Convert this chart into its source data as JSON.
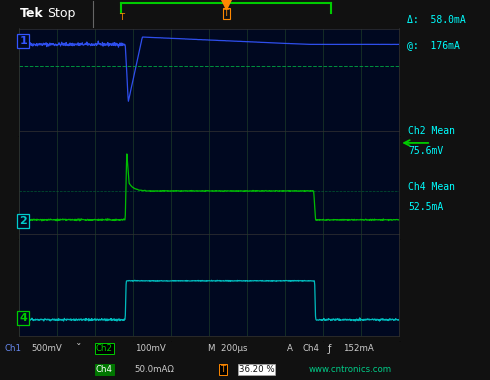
{
  "fig_w": 4.9,
  "fig_h": 3.8,
  "dpi": 100,
  "bg_color": "#111111",
  "screen_bg": "#000820",
  "grid_color": "#2d5a2d",
  "ch1_color": "#3355ff",
  "ch2_color": "#00cc00",
  "ch4_color": "#00cccc",
  "orange_color": "#ff8800",
  "cyan_color": "#00ffff",
  "green_text": "#00cc88",
  "dashed_color": "#00aa44",
  "num_points": 1000,
  "ps": 2.8,
  "pe": 7.8,
  "ch1_high": 0.75,
  "ch1_dip": -1.6,
  "ch2_spike": 3.2,
  "ch2_pulse": 1.4,
  "ch2_low": 0.05,
  "ch4_pulse": 1.5,
  "ch4_low": 0.1,
  "delta_text": "Δ:  58.0mA",
  "at_text": "@:  176mA",
  "ch2_mean_label": "Ch2 Mean",
  "ch2_mean_val": "75.6mV",
  "ch4_mean_label": "Ch4 Mean",
  "ch4_mean_val": "52.5mA"
}
